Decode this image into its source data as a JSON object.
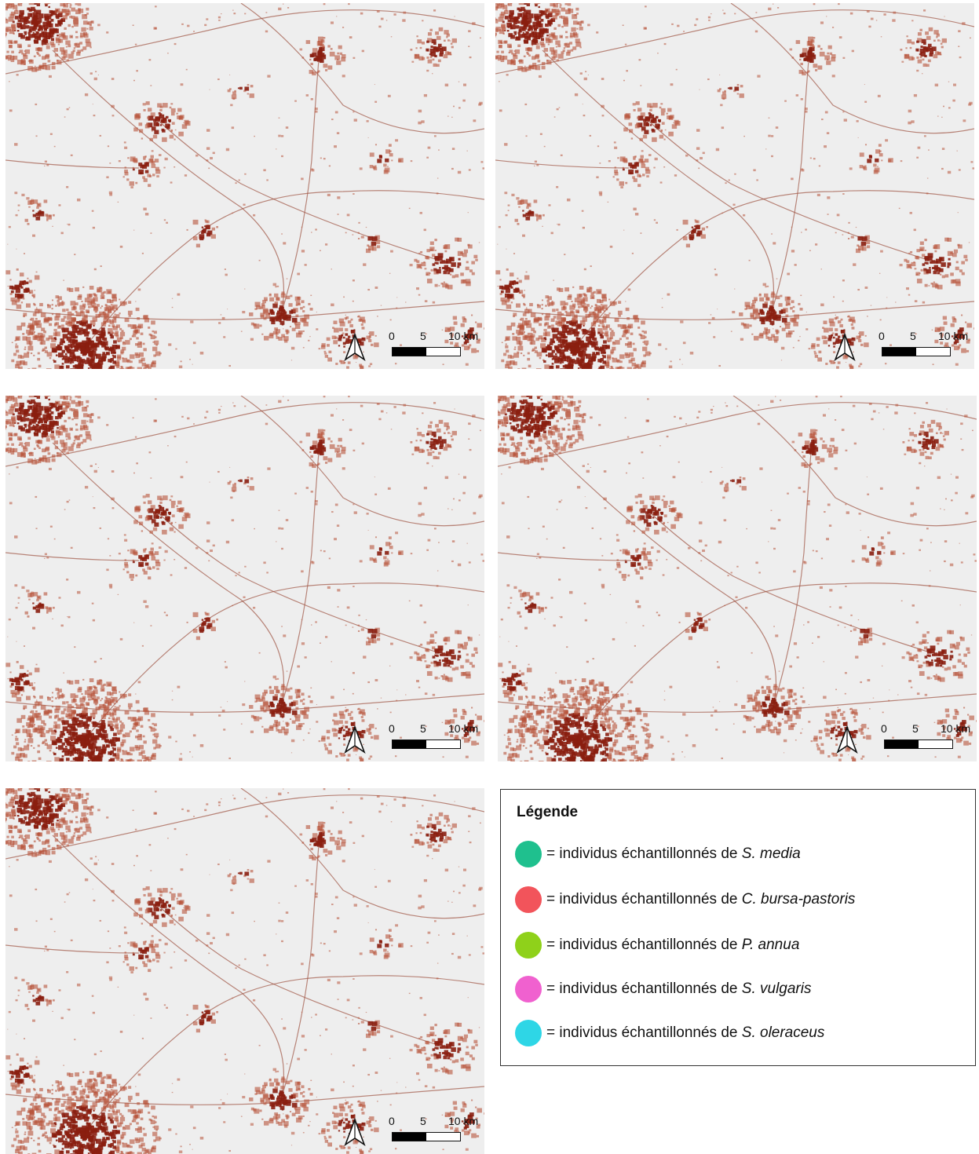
{
  "scalebar": {
    "labels": [
      "0",
      "5",
      "10 km"
    ]
  },
  "legend": {
    "title": "Légende",
    "items": [
      {
        "prefix": "= individus échantillonnés de ",
        "species": "S. media",
        "color": "#1fc08e"
      },
      {
        "prefix": "= individus échantillonnés de ",
        "species": "C. bursa-pastoris",
        "color": "#f2545b"
      },
      {
        "prefix": "= individus échantillonnés de ",
        "species": "P. annua",
        "color": "#8fd11a"
      },
      {
        "prefix": "= individus échantillonnés de ",
        "species": "S. vulgaris",
        "color": "#f061cf"
      },
      {
        "prefix": "= individus échantillonnés de ",
        "species": "S. oleraceus",
        "color": "#2ed6e6"
      }
    ]
  },
  "colors": {
    "urban": "#8a1e0f",
    "suburban": "#b8543a",
    "road": "#a05545",
    "background": "#eeeeee"
  },
  "icons": {
    "north_arrow": "north-arrow-icon"
  }
}
